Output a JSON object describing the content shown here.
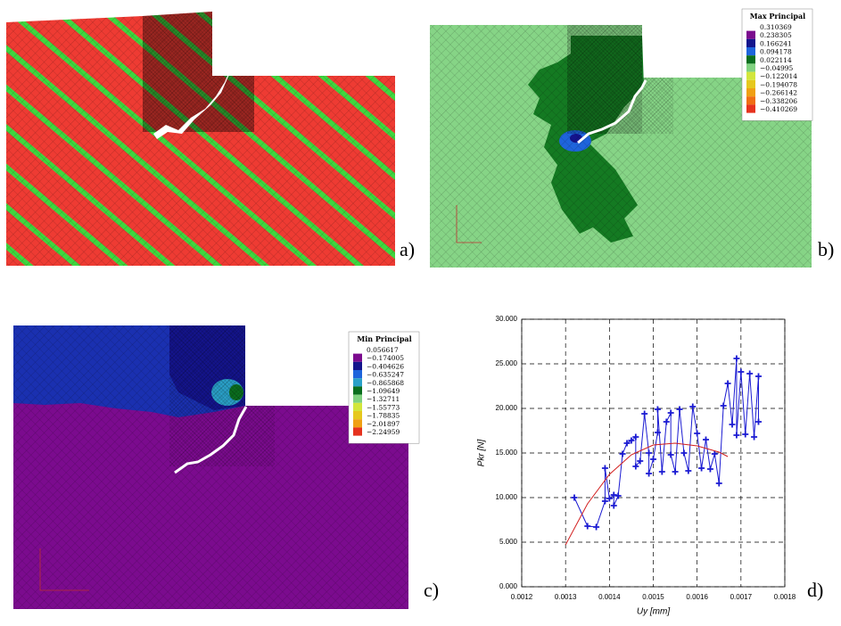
{
  "panels": [
    {
      "label": "a)"
    },
    {
      "label": "b)",
      "legend": {
        "title": "Max Principal",
        "levels": [
          "0.310369",
          "0.238305",
          "0.166241",
          "0.094178",
          "0.022114",
          "−0.04995",
          "−0.122014",
          "−0.194078",
          "−0.266142",
          "−0.338206",
          "−0.410269"
        ],
        "colors": [
          "#7b0b8e",
          "#14148c",
          "#1e64dc",
          "#0a6e1e",
          "#7fd27f",
          "#d2e63c",
          "#e6c81e",
          "#f0a014",
          "#f06e14",
          "#e6321e"
        ]
      }
    },
    {
      "label": "c)",
      "legend": {
        "title": "Min Principal",
        "levels": [
          "0.056617",
          "−0.174005",
          "−0.404626",
          "−0.635247",
          "−0.865868",
          "−1.09649",
          "−1.32711",
          "−1.55773",
          "−1.78835",
          "−2.01897",
          "−2.24959"
        ],
        "colors": [
          "#7b0b8e",
          "#14148c",
          "#1e64dc",
          "#2aa0c8",
          "#0a6e1e",
          "#7fd27f",
          "#d2e63c",
          "#e6c81e",
          "#f0a014",
          "#e6321e"
        ]
      }
    },
    {
      "label": "d)"
    }
  ],
  "chart_data": {
    "type": "line",
    "x_label": "Uy [mm]",
    "y_label": "Pkr [N]",
    "xlim": [
      0.0012,
      0.0018
    ],
    "xticks": [
      0.0012,
      0.0013,
      0.0014,
      0.0015,
      0.0016,
      0.0017,
      0.0018
    ],
    "ylim": [
      0,
      30
    ],
    "yticks": [
      {
        "value": 0,
        "label": "0.000"
      },
      {
        "value": 5,
        "label": "5.000"
      },
      {
        "value": 10,
        "label": "10.000"
      },
      {
        "value": 15,
        "label": "15.000"
      },
      {
        "value": 20,
        "label": "20.000"
      },
      {
        "value": 25,
        "label": "25.000"
      },
      {
        "value": 30,
        "label": "30.000"
      }
    ],
    "grid": true,
    "series": [
      {
        "color": "#1a1ad2",
        "marker": "+",
        "x": [
          0.00132,
          0.00135,
          0.00137,
          0.00139,
          0.00139,
          0.0014,
          0.00141,
          0.00141,
          0.00142,
          0.00143,
          0.00144,
          0.00145,
          0.00146,
          0.00146,
          0.00147,
          0.00148,
          0.00149,
          0.00149,
          0.0015,
          0.00151,
          0.00151,
          0.00152,
          0.00153,
          0.00154,
          0.00154,
          0.00155,
          0.00156,
          0.00157,
          0.00158,
          0.00159,
          0.0016,
          0.00161,
          0.00162,
          0.00163,
          0.00164,
          0.00165,
          0.00166,
          0.00167,
          0.00168,
          0.00169,
          0.00169,
          0.0017,
          0.00171,
          0.00172,
          0.00173,
          0.00174,
          0.00174
        ],
        "values": [
          10.0,
          6.8,
          6.7,
          9.6,
          13.3,
          9.9,
          10.3,
          9.1,
          10.2,
          14.9,
          16.1,
          16.4,
          16.8,
          13.5,
          14.1,
          19.4,
          15.0,
          12.7,
          14.3,
          17.3,
          19.9,
          12.9,
          18.5,
          19.5,
          14.8,
          12.9,
          19.9,
          15.0,
          13.0,
          20.2,
          17.2,
          13.3,
          16.5,
          13.2,
          14.9,
          11.6,
          20.3,
          22.8,
          18.2,
          25.6,
          17.0,
          24.1,
          17.1,
          23.9,
          16.8,
          23.6,
          18.5
        ]
      },
      {
        "color": "#d21e1e",
        "x": [
          0.0013,
          0.00135,
          0.0014,
          0.00145,
          0.0015,
          0.00155,
          0.0016,
          0.00165,
          0.00167
        ],
        "values": [
          4.7,
          9.3,
          12.6,
          14.8,
          15.9,
          16.1,
          15.8,
          15.1,
          14.6
        ]
      }
    ]
  }
}
